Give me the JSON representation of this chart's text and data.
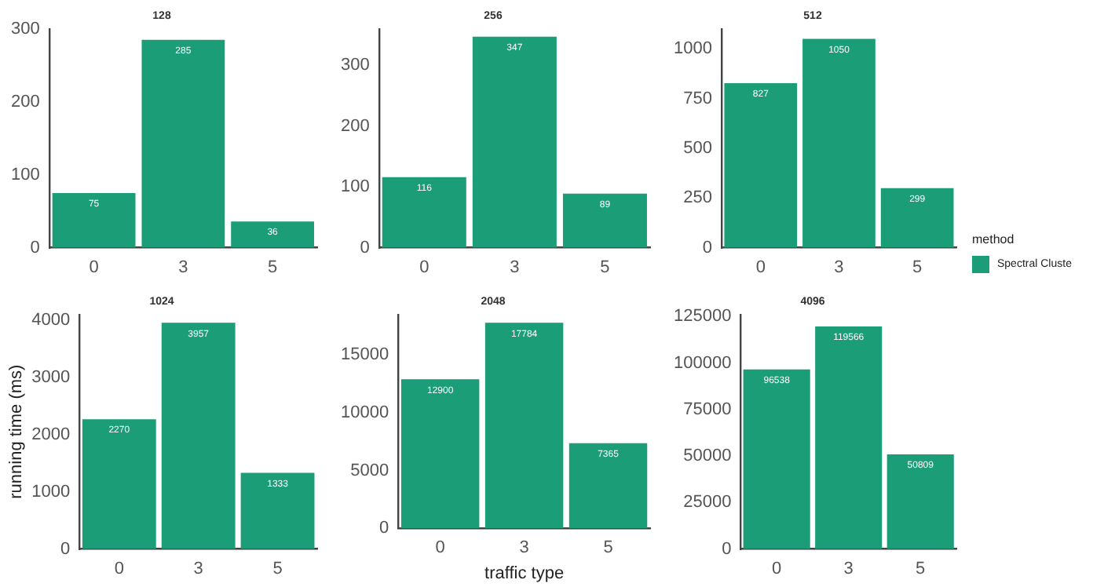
{
  "chart_data": [
    {
      "type": "bar",
      "title": "128",
      "categories": [
        "0",
        "3",
        "5"
      ],
      "series": [
        {
          "color": "#1b9e77",
          "values": [
            75,
            285,
            36
          ]
        }
      ],
      "ylim": [
        0,
        300
      ],
      "yticks": [
        0,
        100,
        200,
        300
      ],
      "data_labels": true,
      "grid": false,
      "legend": false
    },
    {
      "type": "bar",
      "title": "256",
      "categories": [
        "0",
        "3",
        "5"
      ],
      "series": [
        {
          "color": "#1b9e77",
          "values": [
            116,
            347,
            89
          ]
        }
      ],
      "ylim": [
        0,
        360
      ],
      "yticks": [
        0,
        100,
        200,
        300
      ],
      "data_labels": true,
      "grid": false,
      "legend": false
    },
    {
      "type": "bar",
      "title": "512",
      "categories": [
        "0",
        "3",
        "5"
      ],
      "series": [
        {
          "name": "Spectral Cluste",
          "color": "#1b9e77",
          "values": [
            827,
            1050,
            299
          ]
        }
      ],
      "ylim": [
        0,
        1100
      ],
      "yticks": [
        0,
        250,
        500,
        750,
        1000
      ],
      "data_labels": true,
      "grid": false,
      "legend": "right",
      "legend_title": "method"
    },
    {
      "type": "bar",
      "title": "1024",
      "ylabel": "running time (ms)",
      "categories": [
        "0",
        "3",
        "5"
      ],
      "series": [
        {
          "color": "#1b9e77",
          "values": [
            2270,
            3957,
            1333
          ]
        }
      ],
      "ylim": [
        0,
        4100
      ],
      "yticks": [
        0,
        1000,
        2000,
        3000,
        4000
      ],
      "data_labels": true,
      "grid": false,
      "legend": false
    },
    {
      "type": "bar",
      "title": "2048",
      "xlabel": "traffic type",
      "categories": [
        "0",
        "3",
        "5"
      ],
      "series": [
        {
          "color": "#1b9e77",
          "values": [
            12900,
            17784,
            7365
          ]
        }
      ],
      "ylim": [
        0,
        18500
      ],
      "yticks": [
        0,
        5000,
        10000,
        15000
      ],
      "data_labels": true,
      "grid": false,
      "legend": false
    },
    {
      "type": "bar",
      "title": "4096",
      "categories": [
        "0",
        "3",
        "5"
      ],
      "series": [
        {
          "color": "#1b9e77",
          "values": [
            96538,
            119566,
            50809
          ]
        }
      ],
      "ylim": [
        0,
        126000
      ],
      "yticks": [
        0,
        25000,
        50000,
        75000,
        100000,
        125000
      ],
      "data_labels": true,
      "grid": false,
      "legend": false
    }
  ]
}
